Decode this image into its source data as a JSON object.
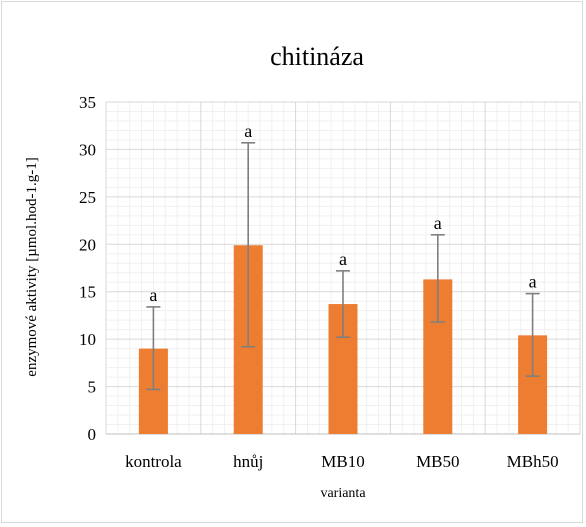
{
  "chart_data": {
    "type": "bar",
    "title": "chitináza",
    "xlabel": "varianta",
    "ylabel": "enzymové aktivity [µmol.hod-1.g-1]",
    "ylim": [
      0,
      35
    ],
    "yticks": [
      0,
      5,
      10,
      15,
      20,
      25,
      30,
      35
    ],
    "minor_step": 1,
    "grid": true,
    "legend": "none",
    "categories": [
      "kontrola",
      "hnůj",
      "MB10",
      "MB50",
      "MBh50"
    ],
    "values": [
      9.0,
      19.9,
      13.7,
      16.3,
      10.4
    ],
    "error_low": [
      4.7,
      9.2,
      10.2,
      11.8,
      6.1
    ],
    "error_high": [
      13.4,
      30.7,
      17.2,
      21.0,
      14.8
    ],
    "labels": [
      "a",
      "a",
      "a",
      "a",
      "a"
    ],
    "bar_color": "#ed7d31",
    "error_color": "#7f7f7f",
    "grid_color": "#d9d9d9"
  }
}
